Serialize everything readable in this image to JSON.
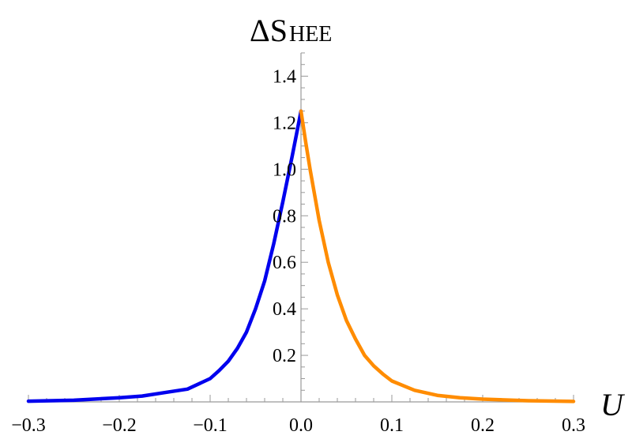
{
  "chart_data": {
    "type": "line",
    "title": "",
    "xlabel": "U",
    "ylabel_main": "ΔS",
    "ylabel_sub": "HEE",
    "xlim": [
      -0.3,
      0.3
    ],
    "ylim": [
      0,
      1.5
    ],
    "x_ticks": [
      -0.3,
      -0.2,
      -0.1,
      0.0,
      0.1,
      0.2,
      0.3
    ],
    "x_tick_labels": [
      "−0.3",
      "−0.2",
      "−0.1",
      "0.0",
      "0.1",
      "0.2",
      "0.3"
    ],
    "y_ticks": [
      0.2,
      0.4,
      0.6,
      0.8,
      1.0,
      1.2,
      1.4
    ],
    "y_tick_labels": [
      "0.2",
      "0.4",
      "0.6",
      "0.8",
      "1.0",
      "1.2",
      "1.4"
    ],
    "grid": false,
    "series": [
      {
        "color": "#0000ee",
        "points": [
          [
            -0.3,
            0.003
          ],
          [
            -0.25,
            0.007
          ],
          [
            -0.2,
            0.018
          ],
          [
            -0.175,
            0.025
          ],
          [
            -0.15,
            0.04
          ],
          [
            -0.125,
            0.055
          ],
          [
            -0.1,
            0.1
          ],
          [
            -0.09,
            0.135
          ],
          [
            -0.08,
            0.175
          ],
          [
            -0.07,
            0.23
          ],
          [
            -0.06,
            0.3
          ],
          [
            -0.05,
            0.4
          ],
          [
            -0.04,
            0.52
          ],
          [
            -0.03,
            0.68
          ],
          [
            -0.02,
            0.86
          ],
          [
            -0.01,
            1.05
          ],
          [
            -0.005,
            1.15
          ],
          [
            0.0,
            1.25
          ]
        ]
      },
      {
        "color": "#ff8c00",
        "points": [
          [
            0.0,
            1.25
          ],
          [
            0.005,
            1.12
          ],
          [
            0.01,
            1.0
          ],
          [
            0.02,
            0.78
          ],
          [
            0.03,
            0.6
          ],
          [
            0.04,
            0.46
          ],
          [
            0.05,
            0.35
          ],
          [
            0.06,
            0.27
          ],
          [
            0.07,
            0.2
          ],
          [
            0.08,
            0.155
          ],
          [
            0.09,
            0.12
          ],
          [
            0.1,
            0.09
          ],
          [
            0.125,
            0.05
          ],
          [
            0.15,
            0.028
          ],
          [
            0.175,
            0.018
          ],
          [
            0.2,
            0.012
          ],
          [
            0.25,
            0.005
          ],
          [
            0.3,
            0.002
          ]
        ]
      }
    ]
  }
}
